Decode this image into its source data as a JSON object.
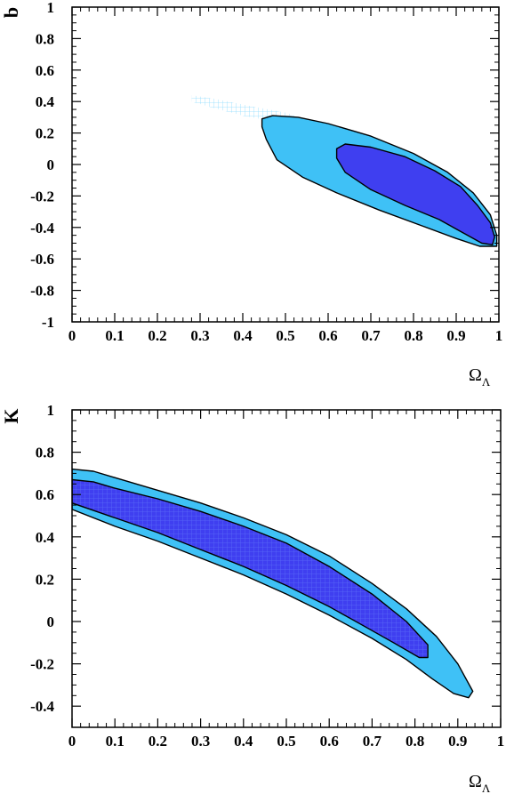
{
  "colors": {
    "outer_fill": "#3fc1f6",
    "inner_fill": "#3f3ff0",
    "grid_hatch": "#8fdcff",
    "outline": "#000000",
    "background": "#ffffff"
  },
  "chart_data": [
    {
      "type": "contour",
      "xlabel": "Ω",
      "xlabel_sub": "Λ",
      "ylabel": "b",
      "xlim": [
        0,
        1
      ],
      "ylim": [
        -1,
        1
      ],
      "x_ticks": [
        "0",
        "0.1",
        "0.2",
        "0.3",
        "0.4",
        "0.5",
        "0.6",
        "0.7",
        "0.8",
        "0.9",
        "1"
      ],
      "y_ticks": [
        "-1",
        "-0.8",
        "-0.6",
        "-0.4",
        "-0.2",
        "0",
        "0.2",
        "0.4",
        "0.6",
        "0.8",
        "1"
      ],
      "x_tick_values": [
        0,
        0.1,
        0.2,
        0.3,
        0.4,
        0.5,
        0.6,
        0.7,
        0.8,
        0.9,
        1
      ],
      "y_tick_values": [
        -1,
        -0.8,
        -0.6,
        -0.4,
        -0.2,
        0,
        0.2,
        0.4,
        0.6,
        0.8,
        1
      ],
      "hatch_region": [
        [
          0.28,
          0.44
        ],
        [
          0.33,
          0.42
        ],
        [
          0.42,
          0.37
        ],
        [
          0.5,
          0.33
        ],
        [
          0.55,
          0.28
        ],
        [
          0.48,
          0.27
        ],
        [
          0.4,
          0.31
        ],
        [
          0.33,
          0.36
        ],
        [
          0.28,
          0.4
        ]
      ],
      "outer_contour": [
        [
          0.445,
          0.29
        ],
        [
          0.47,
          0.31
        ],
        [
          0.53,
          0.3
        ],
        [
          0.6,
          0.26
        ],
        [
          0.7,
          0.18
        ],
        [
          0.8,
          0.07
        ],
        [
          0.88,
          -0.05
        ],
        [
          0.94,
          -0.18
        ],
        [
          0.98,
          -0.32
        ],
        [
          0.995,
          -0.45
        ],
        [
          0.995,
          -0.52
        ],
        [
          0.955,
          -0.52
        ],
        [
          0.9,
          -0.47
        ],
        [
          0.82,
          -0.39
        ],
        [
          0.72,
          -0.29
        ],
        [
          0.62,
          -0.18
        ],
        [
          0.54,
          -0.08
        ],
        [
          0.48,
          0.03
        ],
        [
          0.455,
          0.16
        ],
        [
          0.445,
          0.24
        ]
      ],
      "inner_contour": [
        [
          0.62,
          0.1
        ],
        [
          0.64,
          0.13
        ],
        [
          0.7,
          0.11
        ],
        [
          0.78,
          0.05
        ],
        [
          0.85,
          -0.04
        ],
        [
          0.91,
          -0.14
        ],
        [
          0.95,
          -0.26
        ],
        [
          0.98,
          -0.37
        ],
        [
          0.99,
          -0.46
        ],
        [
          0.985,
          -0.51
        ],
        [
          0.96,
          -0.5
        ],
        [
          0.92,
          -0.44
        ],
        [
          0.86,
          -0.35
        ],
        [
          0.78,
          -0.26
        ],
        [
          0.7,
          -0.16
        ],
        [
          0.64,
          -0.05
        ],
        [
          0.62,
          0.04
        ]
      ]
    },
    {
      "type": "contour",
      "xlabel": "Ω",
      "xlabel_sub": "Λ",
      "ylabel": "K",
      "xlim": [
        0,
        1
      ],
      "ylim": [
        -0.5,
        1
      ],
      "x_ticks": [
        "0",
        "0.1",
        "0.2",
        "0.3",
        "0.4",
        "0.5",
        "0.6",
        "0.7",
        "0.8",
        "0.9",
        "1"
      ],
      "y_ticks": [
        "-0.4",
        "-0.2",
        "0",
        "0.2",
        "0.4",
        "0.6",
        "0.8",
        "1"
      ],
      "x_tick_values": [
        0,
        0.1,
        0.2,
        0.3,
        0.4,
        0.5,
        0.6,
        0.7,
        0.8,
        0.9,
        1
      ],
      "y_tick_values": [
        -0.4,
        -0.2,
        0,
        0.2,
        0.4,
        0.6,
        0.8,
        1
      ],
      "outer_contour": [
        [
          0.0,
          0.72
        ],
        [
          0.05,
          0.71
        ],
        [
          0.1,
          0.68
        ],
        [
          0.2,
          0.62
        ],
        [
          0.3,
          0.56
        ],
        [
          0.4,
          0.49
        ],
        [
          0.5,
          0.41
        ],
        [
          0.6,
          0.31
        ],
        [
          0.7,
          0.18
        ],
        [
          0.78,
          0.06
        ],
        [
          0.85,
          -0.07
        ],
        [
          0.9,
          -0.2
        ],
        [
          0.935,
          -0.33
        ],
        [
          0.925,
          -0.36
        ],
        [
          0.89,
          -0.34
        ],
        [
          0.84,
          -0.27
        ],
        [
          0.78,
          -0.18
        ],
        [
          0.7,
          -0.08
        ],
        [
          0.6,
          0.03
        ],
        [
          0.5,
          0.13
        ],
        [
          0.4,
          0.22
        ],
        [
          0.3,
          0.3
        ],
        [
          0.2,
          0.38
        ],
        [
          0.1,
          0.45
        ],
        [
          0.0,
          0.53
        ]
      ],
      "inner_contour": [
        [
          0.0,
          0.67
        ],
        [
          0.05,
          0.66
        ],
        [
          0.1,
          0.63
        ],
        [
          0.2,
          0.58
        ],
        [
          0.3,
          0.52
        ],
        [
          0.4,
          0.45
        ],
        [
          0.5,
          0.37
        ],
        [
          0.6,
          0.26
        ],
        [
          0.7,
          0.13
        ],
        [
          0.78,
          0.0
        ],
        [
          0.83,
          -0.11
        ],
        [
          0.83,
          -0.17
        ],
        [
          0.81,
          -0.17
        ],
        [
          0.75,
          -0.1
        ],
        [
          0.68,
          -0.02
        ],
        [
          0.6,
          0.07
        ],
        [
          0.5,
          0.17
        ],
        [
          0.4,
          0.26
        ],
        [
          0.3,
          0.34
        ],
        [
          0.2,
          0.42
        ],
        [
          0.1,
          0.49
        ],
        [
          0.0,
          0.56
        ]
      ],
      "hatch_inside_inner": true
    }
  ]
}
